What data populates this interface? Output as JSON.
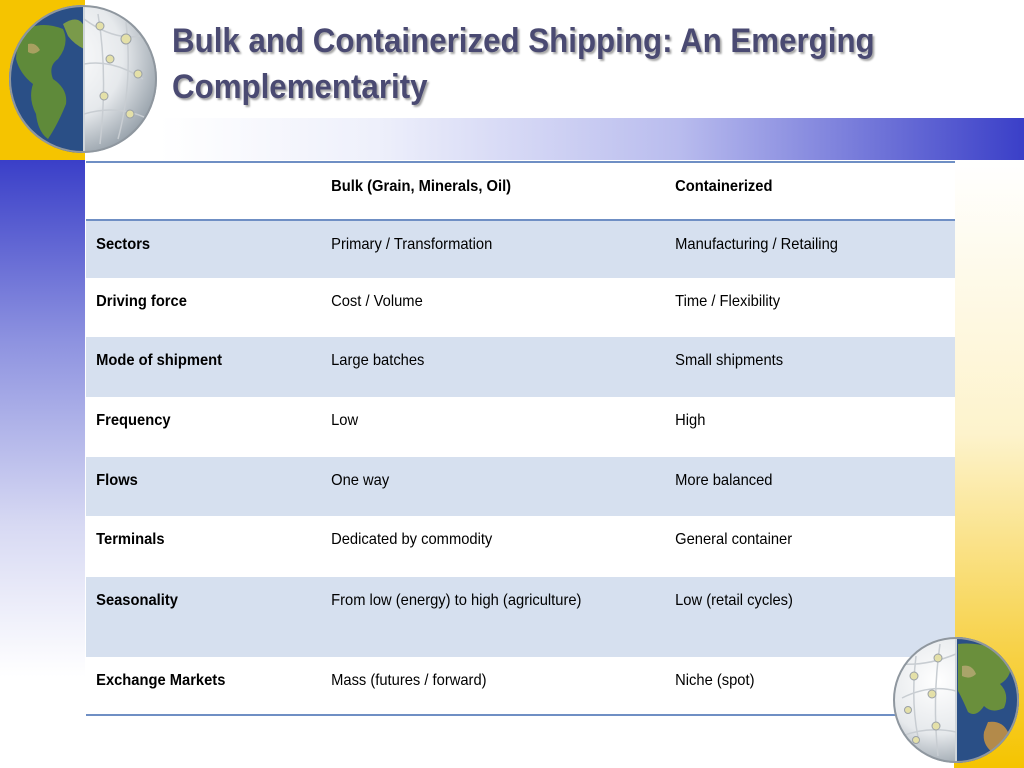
{
  "slide": {
    "title": "Bulk and Containerized Shipping: An Emerging Complementarity"
  },
  "table": {
    "headers": [
      "",
      "Bulk (Grain, Minerals, Oil)",
      "Containerized"
    ],
    "rows": [
      {
        "label": "Sectors",
        "bulk": "Primary / Transformation",
        "containerized": "Manufacturing / Retailing"
      },
      {
        "label": "Driving force",
        "bulk": "Cost / Volume",
        "containerized": "Time / Flexibility"
      },
      {
        "label": "Mode of shipment",
        "bulk": "Large batches",
        "containerized": "Small shipments"
      },
      {
        "label": "Frequency",
        "bulk": "Low",
        "containerized": "High"
      },
      {
        "label": "Flows",
        "bulk": "One way",
        "containerized": "More balanced"
      },
      {
        "label": "Terminals",
        "bulk": "Dedicated by commodity",
        "containerized": "General container"
      },
      {
        "label": "Seasonality",
        "bulk": "From low (energy) to high (agriculture)",
        "containerized": "Low (retail cycles)"
      },
      {
        "label": "Exchange Markets",
        "bulk": "Mass (futures / forward)",
        "containerized": "Niche (spot)"
      }
    ]
  },
  "colors": {
    "accent_blue": "#3a3fc8",
    "accent_yellow": "#f5c400",
    "row_shade": "#d6e0ef",
    "title_color": "#4a4a72"
  },
  "icons": [
    "globe-americas-icon",
    "globe-asia-icon"
  ]
}
